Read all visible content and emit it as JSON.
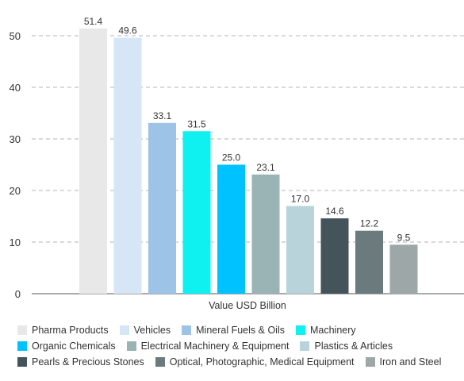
{
  "chart_data": {
    "type": "bar",
    "title": "",
    "xlabel": "Value USD Billion",
    "ylabel": "",
    "ylim": [
      0,
      55
    ],
    "yticks": [
      0,
      10,
      20,
      30,
      40,
      50
    ],
    "grid": true,
    "legend_position": "bottom",
    "categories": [
      "Pharma Products",
      "Vehicles",
      "Mineral Fuels & Oils",
      "Machinery",
      "Organic Chemicals",
      "Electrical Machinery & Equipment",
      "Plastics & Articles",
      "Pearls & Precious Stones",
      "Optical, Photographic, Medical Equipment",
      "Iron and Steel"
    ],
    "values": [
      51.4,
      49.6,
      33.1,
      31.5,
      25.0,
      23.1,
      17.0,
      14.6,
      12.2,
      9.5
    ],
    "value_labels": [
      "51.4",
      "49.6",
      "33.1",
      "31.5",
      "25.0",
      "23.1",
      "17.0",
      "14.6",
      "12.2",
      "9.5"
    ],
    "colors": [
      "#e8e8e8",
      "#d6e6f7",
      "#9dc3e6",
      "#0ff0f0",
      "#00c2ff",
      "#9ab3b5",
      "#b8d4da",
      "#44545a",
      "#6b7a7c",
      "#9ea7a8"
    ],
    "legend_rows": [
      [
        0,
        1,
        2,
        3
      ],
      [
        4,
        5,
        6
      ],
      [
        7,
        8,
        9
      ]
    ]
  }
}
